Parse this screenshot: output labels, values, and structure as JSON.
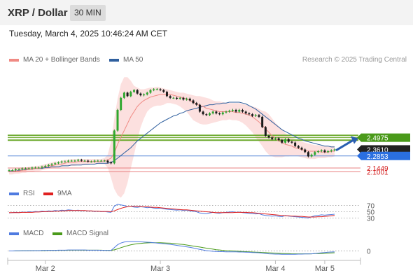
{
  "header": {
    "title": "XRP / Dollar",
    "timeframe": "30 MIN"
  },
  "datetime": "Tuesday, March 4, 2025 10:46:24 AM CET",
  "legend": [
    {
      "label": "MA 20 + Bollinger Bands",
      "color": "#f08a84"
    },
    {
      "label": "MA 50",
      "color": "#2f5f9e"
    }
  ],
  "copyright": "Research © 2025 Trading Central",
  "rsi_legend": [
    {
      "label": "RSI",
      "color": "#4f7be0"
    },
    {
      "label": "9MA",
      "color": "#e02020"
    }
  ],
  "macd_legend": [
    {
      "label": "MACD",
      "color": "#4f7be0"
    },
    {
      "label": "MACD Signal",
      "color": "#4a9a1a"
    }
  ],
  "chart_data": {
    "type": "line",
    "main": {
      "ylim": [
        2.08,
        3.3
      ],
      "close": [
        2.12,
        2.12,
        2.13,
        2.13,
        2.14,
        2.14,
        2.14,
        2.15,
        2.15,
        2.15,
        2.16,
        2.17,
        2.18,
        2.19,
        2.2,
        2.21,
        2.22,
        2.22,
        2.23,
        2.23,
        2.23,
        2.24,
        2.23,
        2.23,
        2.22,
        2.22,
        2.23,
        2.23,
        2.23,
        2.23,
        2.21,
        2.2,
        2.58,
        2.82,
        2.96,
        3.02,
        2.98,
        3.03,
        3.05,
        3.01,
        2.99,
        3.0,
        3.02,
        3.05,
        3.06,
        3.06,
        3.05,
        3.03,
        2.98,
        2.96,
        2.96,
        2.95,
        2.96,
        2.94,
        2.95,
        2.93,
        2.9,
        2.88,
        2.8,
        2.77,
        2.76,
        2.78,
        2.8,
        2.78,
        2.77,
        2.79,
        2.8,
        2.81,
        2.82,
        2.8,
        2.82,
        2.8,
        2.78,
        2.77,
        2.75,
        2.76,
        2.74,
        2.62,
        2.52,
        2.5,
        2.48,
        2.49,
        2.47,
        2.44,
        2.48,
        2.45,
        2.44,
        2.4,
        2.38,
        2.36,
        2.33,
        2.28,
        2.3,
        2.33,
        2.34,
        2.35,
        2.33,
        2.34,
        2.35,
        2.36
      ],
      "ma20": [
        2.1,
        2.1,
        2.11,
        2.11,
        2.12,
        2.12,
        2.13,
        2.13,
        2.14,
        2.14,
        2.15,
        2.16,
        2.17,
        2.17,
        2.18,
        2.19,
        2.19,
        2.2,
        2.21,
        2.21,
        2.21,
        2.22,
        2.22,
        2.22,
        2.22,
        2.22,
        2.22,
        2.22,
        2.22,
        2.23,
        2.24,
        2.26,
        2.32,
        2.42,
        2.5,
        2.58,
        2.66,
        2.74,
        2.8,
        2.86,
        2.9,
        2.93,
        2.95,
        2.97,
        2.98,
        2.99,
        3.0,
        3.0,
        3.0,
        3.0,
        2.99,
        2.98,
        2.97,
        2.96,
        2.95,
        2.93,
        2.91,
        2.89,
        2.87,
        2.86,
        2.84,
        2.83,
        2.82,
        2.81,
        2.8,
        2.8,
        2.8,
        2.8,
        2.8,
        2.79,
        2.79,
        2.78,
        2.77,
        2.76,
        2.74,
        2.71,
        2.68,
        2.64,
        2.6,
        2.56,
        2.52,
        2.49,
        2.46,
        2.44,
        2.42,
        2.41,
        2.4,
        2.38,
        2.37,
        2.36,
        2.35,
        2.34,
        2.34,
        2.34,
        2.34,
        2.33,
        2.33,
        2.33,
        2.34,
        2.34
      ],
      "bb_upper": [
        2.13,
        2.13,
        2.14,
        2.14,
        2.15,
        2.15,
        2.16,
        2.16,
        2.17,
        2.17,
        2.18,
        2.19,
        2.2,
        2.21,
        2.22,
        2.22,
        2.23,
        2.24,
        2.24,
        2.25,
        2.25,
        2.25,
        2.25,
        2.25,
        2.25,
        2.25,
        2.25,
        2.25,
        2.25,
        2.26,
        2.3,
        2.45,
        2.72,
        2.95,
        3.12,
        3.2,
        3.2,
        3.16,
        3.1,
        3.08,
        3.06,
        3.06,
        3.07,
        3.08,
        3.08,
        3.09,
        3.08,
        3.07,
        3.06,
        3.05,
        3.04,
        3.03,
        3.02,
        3.02,
        3.01,
        3.0,
        2.99,
        2.98,
        2.98,
        2.97,
        2.96,
        2.95,
        2.93,
        2.92,
        2.92,
        2.91,
        2.9,
        2.9,
        2.9,
        2.9,
        2.9,
        2.89,
        2.88,
        2.87,
        2.86,
        2.85,
        2.83,
        2.81,
        2.8,
        2.77,
        2.72,
        2.67,
        2.63,
        2.59,
        2.55,
        2.52,
        2.5,
        2.48,
        2.46,
        2.45,
        2.44,
        2.43,
        2.42,
        2.41,
        2.41,
        2.4,
        2.4,
        2.4,
        2.4,
        2.4
      ],
      "bb_lower": [
        2.07,
        2.07,
        2.08,
        2.08,
        2.09,
        2.09,
        2.1,
        2.1,
        2.11,
        2.11,
        2.12,
        2.13,
        2.14,
        2.14,
        2.15,
        2.16,
        2.16,
        2.17,
        2.17,
        2.17,
        2.17,
        2.18,
        2.18,
        2.18,
        2.18,
        2.19,
        2.19,
        2.19,
        2.19,
        2.19,
        2.15,
        2.03,
        1.9,
        1.83,
        1.8,
        1.85,
        1.97,
        2.14,
        2.3,
        2.47,
        2.62,
        2.72,
        2.8,
        2.84,
        2.86,
        2.87,
        2.87,
        2.88,
        2.9,
        2.9,
        2.89,
        2.88,
        2.86,
        2.83,
        2.8,
        2.75,
        2.7,
        2.68,
        2.66,
        2.65,
        2.65,
        2.66,
        2.67,
        2.68,
        2.69,
        2.7,
        2.7,
        2.71,
        2.7,
        2.7,
        2.69,
        2.67,
        2.64,
        2.6,
        2.56,
        2.5,
        2.45,
        2.4,
        2.34,
        2.3,
        2.28,
        2.27,
        2.27,
        2.27,
        2.28,
        2.28,
        2.29,
        2.29,
        2.28,
        2.27,
        2.26,
        2.25,
        2.25,
        2.25,
        2.26,
        2.26,
        2.26,
        2.27,
        2.27,
        2.28
      ],
      "ma50": [
        2.11,
        2.11,
        2.11,
        2.12,
        2.12,
        2.13,
        2.13,
        2.13,
        2.14,
        2.14,
        2.14,
        2.15,
        2.15,
        2.16,
        2.16,
        2.16,
        2.17,
        2.17,
        2.17,
        2.18,
        2.18,
        2.18,
        2.18,
        2.19,
        2.19,
        2.19,
        2.19,
        2.2,
        2.2,
        2.2,
        2.2,
        2.21,
        2.23,
        2.26,
        2.29,
        2.32,
        2.35,
        2.38,
        2.42,
        2.46,
        2.49,
        2.52,
        2.55,
        2.58,
        2.61,
        2.64,
        2.67,
        2.69,
        2.71,
        2.73,
        2.75,
        2.76,
        2.78,
        2.79,
        2.81,
        2.82,
        2.83,
        2.84,
        2.85,
        2.86,
        2.87,
        2.88,
        2.88,
        2.89,
        2.89,
        2.9,
        2.9,
        2.91,
        2.91,
        2.91,
        2.91,
        2.9,
        2.89,
        2.87,
        2.85,
        2.83,
        2.8,
        2.77,
        2.74,
        2.71,
        2.68,
        2.65,
        2.62,
        2.59,
        2.57,
        2.55,
        2.53,
        2.51,
        2.49,
        2.48,
        2.46,
        2.45,
        2.44,
        2.43,
        2.42,
        2.41,
        2.4,
        2.4,
        2.39,
        2.39
      ],
      "levels": [
        {
          "label": "2.4975",
          "value": 2.4975,
          "color": "#4a9a1a",
          "line": "#6aa82a",
          "box": true
        },
        {
          "label": "2.3610",
          "value": 2.361,
          "color": "#222222",
          "line": null,
          "box": true
        },
        {
          "label": "2.2853",
          "value": 2.2853,
          "color": "#2a6fe0",
          "line": "#5a8ad8",
          "box": true
        },
        {
          "label": "2.1449",
          "value": 2.1449,
          "color": "#d42020",
          "line": "#e88080",
          "box": false
        },
        {
          "label": "2.1001",
          "value": 2.1001,
          "color": "#d42020",
          "line": "#e88080",
          "box": false
        }
      ],
      "support_resistance_bands": [
        2.524,
        2.468
      ],
      "arrow": {
        "from": 2.35,
        "to": 2.49
      }
    },
    "rsi": {
      "ylim": [
        15,
        85
      ],
      "levels": [
        70,
        50,
        30
      ],
      "rsi": [
        46,
        47,
        48,
        47,
        49,
        48,
        50,
        49,
        51,
        50,
        52,
        51,
        53,
        52,
        54,
        53,
        55,
        54,
        56,
        55,
        54,
        55,
        53,
        54,
        52,
        53,
        51,
        52,
        50,
        51,
        49,
        48,
        68,
        74,
        72,
        70,
        66,
        68,
        65,
        64,
        66,
        65,
        63,
        64,
        62,
        61,
        62,
        60,
        58,
        57,
        56,
        55,
        56,
        54,
        55,
        53,
        52,
        50,
        46,
        45,
        44,
        46,
        48,
        46,
        45,
        47,
        48,
        49,
        50,
        48,
        49,
        47,
        46,
        45,
        44,
        43,
        44,
        40,
        38,
        37,
        36,
        37,
        35,
        34,
        38,
        36,
        35,
        34,
        33,
        32,
        31,
        30,
        34,
        37,
        38,
        40,
        39,
        40,
        41,
        42
      ],
      "ma9": [
        47,
        47,
        47,
        47,
        48,
        48,
        48,
        48,
        49,
        49,
        50,
        50,
        51,
        51,
        52,
        52,
        53,
        53,
        54,
        54,
        54,
        54,
        54,
        54,
        53,
        53,
        52,
        52,
        51,
        51,
        51,
        50,
        53,
        57,
        61,
        64,
        66,
        68,
        68,
        68,
        67,
        66,
        66,
        65,
        64,
        64,
        63,
        62,
        61,
        60,
        59,
        58,
        57,
        56,
        56,
        55,
        54,
        53,
        52,
        51,
        50,
        49,
        48,
        47,
        47,
        47,
        47,
        47,
        47,
        48,
        48,
        48,
        48,
        47,
        47,
        46,
        45,
        44,
        43,
        42,
        41,
        40,
        39,
        38,
        37,
        37,
        36,
        36,
        35,
        35,
        34,
        33,
        33,
        33,
        34,
        34,
        35,
        36,
        37,
        38
      ]
    },
    "macd": {
      "ylim": [
        -0.04,
        0.07
      ],
      "zero_label": "0",
      "macd": [
        0.0,
        0.0,
        0.001,
        0.001,
        0.001,
        0.001,
        0.002,
        0.002,
        0.002,
        0.002,
        0.003,
        0.003,
        0.004,
        0.004,
        0.004,
        0.005,
        0.005,
        0.005,
        0.006,
        0.006,
        0.006,
        0.006,
        0.006,
        0.006,
        0.005,
        0.005,
        0.005,
        0.005,
        0.004,
        0.004,
        0.003,
        0.003,
        0.02,
        0.038,
        0.048,
        0.054,
        0.056,
        0.057,
        0.057,
        0.056,
        0.055,
        0.054,
        0.053,
        0.052,
        0.05,
        0.048,
        0.046,
        0.044,
        0.042,
        0.04,
        0.037,
        0.034,
        0.031,
        0.028,
        0.025,
        0.022,
        0.018,
        0.014,
        0.01,
        0.006,
        0.002,
        0.0,
        -0.002,
        -0.003,
        -0.004,
        -0.004,
        -0.005,
        -0.005,
        -0.005,
        -0.005,
        -0.006,
        -0.006,
        -0.007,
        -0.008,
        -0.009,
        -0.01,
        -0.011,
        -0.013,
        -0.015,
        -0.017,
        -0.018,
        -0.019,
        -0.019,
        -0.02,
        -0.02,
        -0.02,
        -0.02,
        -0.02,
        -0.019,
        -0.019,
        -0.018,
        -0.018,
        -0.017,
        -0.015,
        -0.013,
        -0.011,
        -0.009,
        -0.007,
        -0.006,
        -0.005
      ],
      "signal": [
        0.0,
        0.0,
        0.0,
        0.0,
        0.001,
        0.001,
        0.001,
        0.001,
        0.002,
        0.002,
        0.002,
        0.002,
        0.003,
        0.003,
        0.003,
        0.004,
        0.004,
        0.004,
        0.005,
        0.005,
        0.005,
        0.005,
        0.005,
        0.005,
        0.005,
        0.005,
        0.005,
        0.005,
        0.005,
        0.004,
        0.004,
        0.004,
        0.007,
        0.013,
        0.02,
        0.026,
        0.032,
        0.037,
        0.041,
        0.044,
        0.046,
        0.048,
        0.049,
        0.05,
        0.05,
        0.05,
        0.05,
        0.049,
        0.048,
        0.047,
        0.045,
        0.043,
        0.041,
        0.039,
        0.036,
        0.033,
        0.03,
        0.027,
        0.024,
        0.02,
        0.017,
        0.014,
        0.011,
        0.008,
        0.006,
        0.004,
        0.002,
        0.001,
        0.0,
        -0.001,
        -0.002,
        -0.003,
        -0.004,
        -0.005,
        -0.006,
        -0.007,
        -0.008,
        -0.009,
        -0.01,
        -0.011,
        -0.012,
        -0.013,
        -0.014,
        -0.015,
        -0.016,
        -0.016,
        -0.017,
        -0.017,
        -0.017,
        -0.017,
        -0.017,
        -0.017,
        -0.017,
        -0.016,
        -0.016,
        -0.015,
        -0.014,
        -0.013,
        -0.012,
        -0.011
      ]
    },
    "x_ticks": [
      {
        "label": "Mar 2",
        "index": 11
      },
      {
        "label": "Mar 3",
        "index": 46
      },
      {
        "label": "Mar 4",
        "index": 81
      },
      {
        "label": "Mar 5",
        "index": 96
      }
    ]
  }
}
